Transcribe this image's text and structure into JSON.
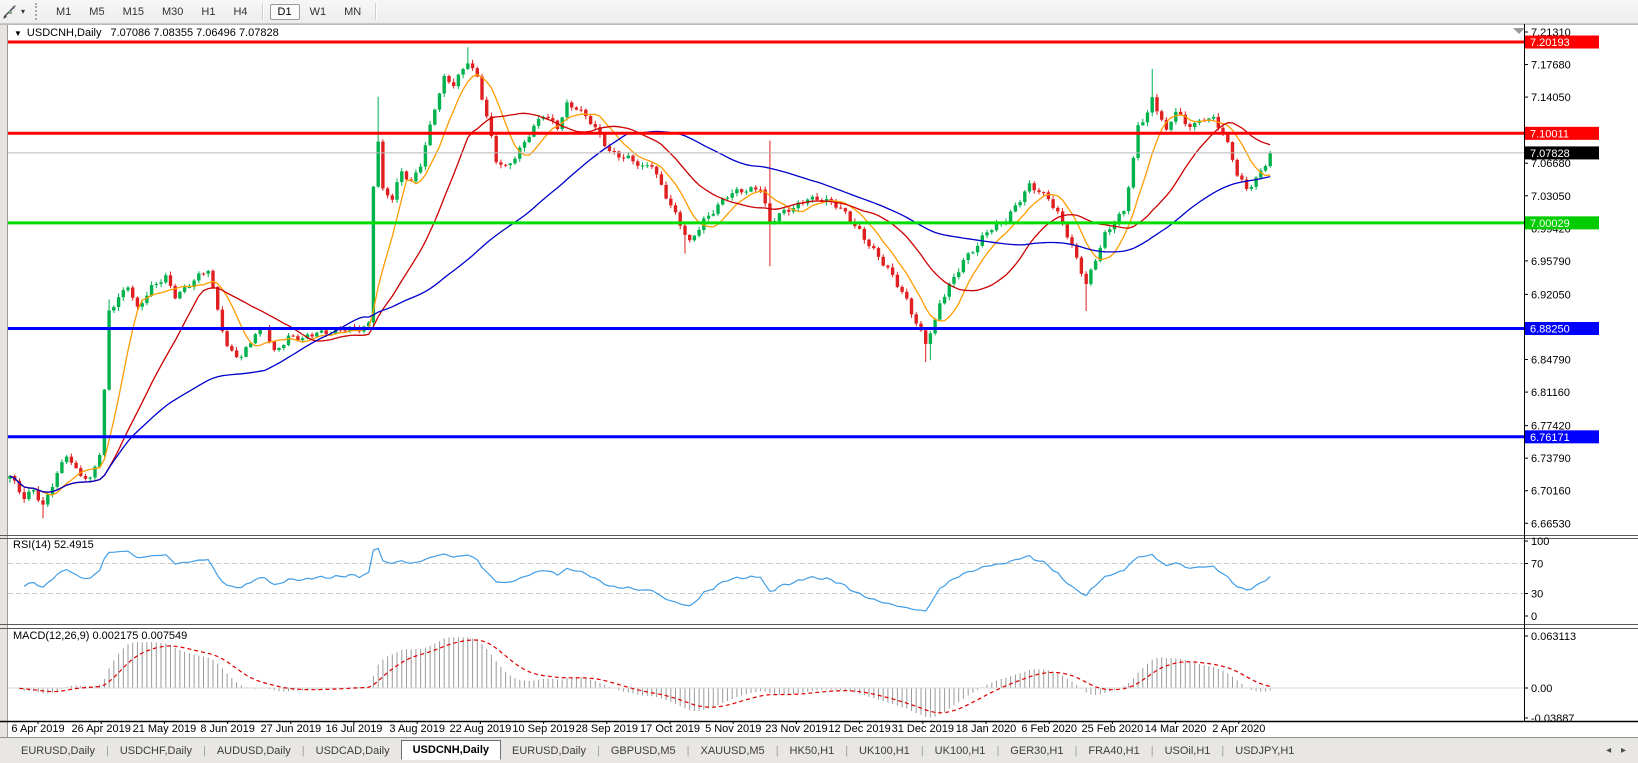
{
  "toolbar": {
    "tool_dropdown_icon": "▾",
    "timeframes": [
      {
        "label": "M1",
        "active": false
      },
      {
        "label": "M5",
        "active": false
      },
      {
        "label": "M15",
        "active": false
      },
      {
        "label": "M30",
        "active": false
      },
      {
        "label": "H1",
        "active": false
      },
      {
        "label": "H4",
        "active": false
      },
      {
        "label": "D1",
        "active": true
      },
      {
        "label": "W1",
        "active": false
      },
      {
        "label": "MN",
        "active": false
      }
    ]
  },
  "window_title": {
    "dropdown_icon": "▼",
    "symbol_period": "USDCNH,Daily",
    "ohlc": "7.07086 7.08355 7.06496 7.07828"
  },
  "chart_data": {
    "type": "candlestick",
    "symbol": "USDCNH",
    "timeframe": "Daily",
    "ohlc_display": {
      "open": "7.07086",
      "high": "7.08355",
      "low": "7.06496",
      "close": "7.07828"
    },
    "colors": {
      "up": "#00b24d",
      "down": "#e02020",
      "level_red": "#ff0000",
      "level_green": "#00dd00",
      "level_blue": "#0000ff",
      "current_line": "#b9b9b9",
      "ma_fast": "#ff9c00",
      "ma_mid": "#cc0000",
      "ma_slow": "#0000cc",
      "rsi": "#419de6",
      "rsi_levels": "#c9c9c9",
      "macd_hist": "#9a9a9a",
      "macd_signal": "#dd0000",
      "badge_text": "#ffffff",
      "axis_text": "#000000"
    },
    "price_axis_ticks": [
      "7.21310",
      "7.17680",
      "7.14050",
      "7.06680",
      "7.03050",
      "6.99420",
      "6.95790",
      "6.92050",
      "6.84790",
      "6.81160",
      "6.77420",
      "6.73790",
      "6.70160",
      "6.66530"
    ],
    "levels": [
      {
        "label": "7.20193",
        "value": 7.20193,
        "color": "#ff0000",
        "width": 3,
        "badge": "#ff0000"
      },
      {
        "label": "7.10011",
        "value": 7.10011,
        "color": "#ff0000",
        "width": 3,
        "badge": "#ff0000"
      },
      {
        "label": "7.07828",
        "value": 7.07828,
        "color": "#b9b9b9",
        "width": 1,
        "badge": "#000000"
      },
      {
        "label": "7.00029",
        "value": 7.00029,
        "color": "#00dd00",
        "width": 3,
        "badge": "#00cc00"
      },
      {
        "label": "6.88250",
        "value": 6.8825,
        "color": "#0000ff",
        "width": 3,
        "badge": "#0000ff"
      },
      {
        "label": "6.76171",
        "value": 6.76171,
        "color": "#0000ff",
        "width": 3,
        "badge": "#0000ff"
      }
    ],
    "date_labels": [
      "6 Apr 2019",
      "26 Apr 2019",
      "21 May 2019",
      "8 Jun 2019",
      "27 Jun 2019",
      "16 Jul 2019",
      "3 Aug 2019",
      "22 Aug 2019",
      "10 Sep 2019",
      "28 Sep 2019",
      "17 Oct 2019",
      "5 Nov 2019",
      "23 Nov 2019",
      "12 Dec 2019",
      "31 Dec 2019",
      "18 Jan 2020",
      "6 Feb 2020",
      "25 Feb 2020",
      "14 Mar 2020",
      "2 Apr 2020"
    ],
    "candles": {
      "count": 268,
      "anchors": [
        [
          0,
          6.716
        ],
        [
          3,
          6.695
        ],
        [
          5,
          6.705
        ],
        [
          7,
          6.684
        ],
        [
          10,
          6.718
        ],
        [
          12,
          6.742
        ],
        [
          14,
          6.726
        ],
        [
          17,
          6.714
        ],
        [
          19,
          6.742
        ],
        [
          20,
          6.81
        ],
        [
          21,
          6.9
        ],
        [
          23,
          6.917
        ],
        [
          25,
          6.933
        ],
        [
          27,
          6.905
        ],
        [
          30,
          6.926
        ],
        [
          33,
          6.94
        ],
        [
          35,
          6.921
        ],
        [
          38,
          6.931
        ],
        [
          42,
          6.947
        ],
        [
          44,
          6.905
        ],
        [
          46,
          6.863
        ],
        [
          49,
          6.849
        ],
        [
          52,
          6.875
        ],
        [
          54,
          6.885
        ],
        [
          56,
          6.858
        ],
        [
          59,
          6.872
        ],
        [
          62,
          6.869
        ],
        [
          65,
          6.88
        ],
        [
          70,
          6.879
        ],
        [
          74,
          6.882
        ],
        [
          76,
          6.889
        ],
        [
          77,
          7.045
        ],
        [
          78,
          7.093
        ],
        [
          79,
          7.036
        ],
        [
          81,
          7.026
        ],
        [
          83,
          7.056
        ],
        [
          85,
          7.046
        ],
        [
          87,
          7.068
        ],
        [
          90,
          7.128
        ],
        [
          92,
          7.159
        ],
        [
          94,
          7.154
        ],
        [
          97,
          7.183
        ],
        [
          99,
          7.163
        ],
        [
          101,
          7.117
        ],
        [
          103,
          7.068
        ],
        [
          105,
          7.062
        ],
        [
          107,
          7.076
        ],
        [
          110,
          7.099
        ],
        [
          113,
          7.119
        ],
        [
          116,
          7.108
        ],
        [
          118,
          7.134
        ],
        [
          120,
          7.129
        ],
        [
          123,
          7.111
        ],
        [
          127,
          7.082
        ],
        [
          131,
          7.072
        ],
        [
          134,
          7.06
        ],
        [
          136,
          7.066
        ],
        [
          138,
          7.043
        ],
        [
          140,
          7.021
        ],
        [
          143,
          6.986
        ],
        [
          144,
          6.976
        ],
        [
          147,
          7.004
        ],
        [
          150,
          7.021
        ],
        [
          152,
          7.03
        ],
        [
          156,
          7.036
        ],
        [
          159,
          7.042
        ],
        [
          161,
          7.001
        ],
        [
          163,
          7.008
        ],
        [
          166,
          7.016
        ],
        [
          169,
          7.03
        ],
        [
          172,
          7.026
        ],
        [
          175,
          7.018
        ],
        [
          177,
          7.011
        ],
        [
          180,
          6.993
        ],
        [
          182,
          6.976
        ],
        [
          185,
          6.953
        ],
        [
          187,
          6.941
        ],
        [
          190,
          6.916
        ],
        [
          192,
          6.889
        ],
        [
          194,
          6.865
        ],
        [
          196,
          6.888
        ],
        [
          197,
          6.91
        ],
        [
          199,
          6.932
        ],
        [
          202,
          6.959
        ],
        [
          205,
          6.973
        ],
        [
          207,
          6.99
        ],
        [
          209,
          6.998
        ],
        [
          211,
          7.006
        ],
        [
          214,
          7.025
        ],
        [
          216,
          7.04
        ],
        [
          218,
          7.035
        ],
        [
          220,
          7.03
        ],
        [
          222,
          7.012
        ],
        [
          224,
          6.986
        ],
        [
          226,
          6.958
        ],
        [
          228,
          6.931
        ],
        [
          230,
          6.962
        ],
        [
          232,
          6.989
        ],
        [
          234,
          7.001
        ],
        [
          236,
          7.011
        ],
        [
          238,
          7.07
        ],
        [
          239,
          7.108
        ],
        [
          241,
          7.125
        ],
        [
          242,
          7.14
        ],
        [
          244,
          7.116
        ],
        [
          245,
          7.1
        ],
        [
          247,
          7.124
        ],
        [
          249,
          7.11
        ],
        [
          251,
          7.112
        ],
        [
          253,
          7.118
        ],
        [
          255,
          7.115
        ],
        [
          257,
          7.098
        ],
        [
          258,
          7.086
        ],
        [
          260,
          7.056
        ],
        [
          262,
          7.04
        ],
        [
          264,
          7.05
        ],
        [
          266,
          7.064
        ],
        [
          267,
          7.078
        ]
      ],
      "overrides": {
        "7": {
          "l": 6.671
        },
        "21": {
          "h": 6.915
        },
        "78": {
          "h": 7.141
        },
        "97": {
          "h": 7.196
        },
        "143": {
          "l": 6.966
        },
        "161": {
          "h": 7.092,
          "l": 6.952
        },
        "194": {
          "l": 6.845
        },
        "195": {
          "l": 6.847
        },
        "228": {
          "l": 6.902
        },
        "242": {
          "h": 7.172
        }
      }
    },
    "moving_averages": [
      {
        "period": 8,
        "color_key": "ma_fast"
      },
      {
        "period": 21,
        "color_key": "ma_mid"
      },
      {
        "period": 55,
        "color_key": "ma_slow"
      }
    ],
    "rsi": {
      "label": "RSI(14) 52.4915",
      "period": 14,
      "value": 52.4915,
      "overbought": 70,
      "oversold": 30,
      "ticks": [
        {
          "label": "100",
          "v": 100
        },
        {
          "label": "70",
          "v": 70
        },
        {
          "label": "30",
          "v": 30
        },
        {
          "label": "0",
          "v": 0
        }
      ]
    },
    "macd": {
      "label": "MACD(12,26,9) 0.002175 0.007549",
      "fast": 12,
      "slow": 26,
      "signal_period": 9,
      "macd_value": 0.002175,
      "signal_value": 0.007549,
      "ticks": [
        {
          "label": "0.063113",
          "v": 0.063113
        },
        {
          "label": "0.00",
          "v": 0
        },
        {
          "label": "-0.03887",
          "v": -0.03887
        }
      ]
    }
  },
  "tabs": {
    "items": [
      {
        "label": "EURUSD,Daily",
        "active": false
      },
      {
        "label": "USDCHF,Daily",
        "active": false
      },
      {
        "label": "AUDUSD,Daily",
        "active": false
      },
      {
        "label": "USDCAD,Daily",
        "active": false
      },
      {
        "label": "USDCNH,Daily",
        "active": true
      },
      {
        "label": "EURUSD,Daily",
        "active": false
      },
      {
        "label": "GBPUSD,M5",
        "active": false
      },
      {
        "label": "XAUUSD,M5",
        "active": false
      },
      {
        "label": "HK50,H1",
        "active": false
      },
      {
        "label": "UK100,H1",
        "active": false
      },
      {
        "label": "UK100,H1",
        "active": false
      },
      {
        "label": "GER30,H1",
        "active": false
      },
      {
        "label": "FRA40,H1",
        "active": false
      },
      {
        "label": "USOil,H1",
        "active": false
      },
      {
        "label": "USDJPY,H1",
        "active": false
      }
    ],
    "scroll_left": "◂",
    "scroll_right": "▸"
  }
}
